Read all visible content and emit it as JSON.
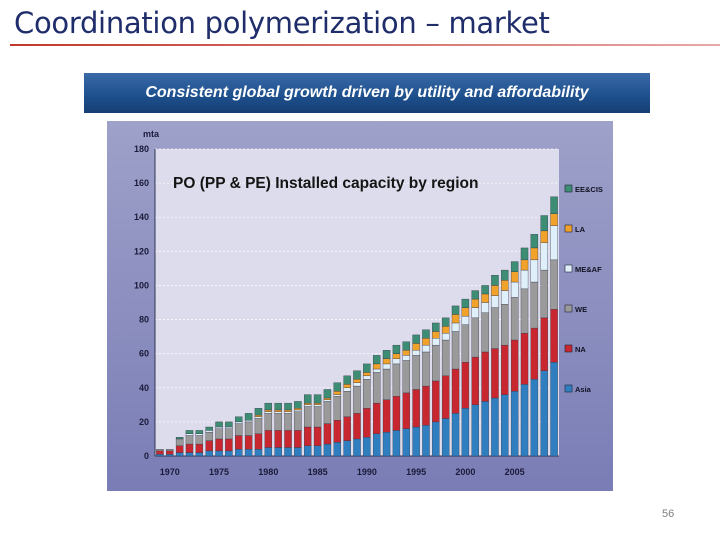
{
  "slide": {
    "title": "Coordination polymerization – market",
    "banner": "Consistent global growth driven by utility and affordability",
    "page_number": "56"
  },
  "colors": {
    "Asia": "#2f7fc0",
    "NA": "#c8272f",
    "WE": "#9a9a9a",
    "ME&AF": "#dff0fb",
    "LA": "#f0a22a",
    "EE&CIS": "#3d8c74"
  },
  "chart_data": {
    "type": "bar",
    "stacked": true,
    "title": "PO (PP & PE) Installed capacity by region",
    "ylabel": "mta",
    "ylim": [
      0,
      180
    ],
    "yticks": [
      "0",
      "20",
      "40",
      "60",
      "80",
      "100",
      "120",
      "140",
      "160",
      "180"
    ],
    "x": [
      1969,
      1970,
      1971,
      1972,
      1973,
      1974,
      1975,
      1976,
      1977,
      1978,
      1979,
      1980,
      1981,
      1982,
      1983,
      1984,
      1985,
      1986,
      1987,
      1988,
      1989,
      1990,
      1991,
      1992,
      1993,
      1994,
      1995,
      1996,
      1997,
      1998,
      1999,
      2000,
      2001,
      2002,
      2003,
      2004,
      2005,
      2006,
      2007,
      2008,
      2009
    ],
    "xticks": [
      "1970",
      "1975",
      "1980",
      "1985",
      "1990",
      "1995",
      "2000",
      "2005"
    ],
    "grid": true,
    "legend": "right",
    "series": [
      {
        "name": "Asia",
        "values": [
          1,
          1,
          2,
          2,
          2,
          3,
          3,
          3,
          4,
          4,
          4,
          5,
          5,
          5,
          5,
          6,
          6,
          7,
          8,
          9,
          10,
          11,
          13,
          14,
          15,
          16,
          17,
          18,
          20,
          22,
          25,
          28,
          30,
          32,
          34,
          36,
          38,
          42,
          45,
          50,
          55
        ]
      },
      {
        "name": "NA",
        "values": [
          2,
          2,
          4,
          5,
          5,
          6,
          7,
          7,
          8,
          8,
          9,
          10,
          10,
          10,
          10,
          11,
          11,
          12,
          13,
          14,
          15,
          17,
          18,
          19,
          20,
          21,
          22,
          23,
          24,
          25,
          26,
          27,
          28,
          29,
          29,
          29,
          30,
          30,
          30,
          31,
          31
        ]
      },
      {
        "name": "WE",
        "values": [
          1,
          1,
          4,
          5,
          5,
          5,
          6,
          6,
          7,
          8,
          9,
          10,
          10,
          10,
          11,
          12,
          12,
          13,
          14,
          15,
          16,
          17,
          18,
          18,
          19,
          19,
          20,
          20,
          21,
          21,
          22,
          22,
          23,
          23,
          24,
          24,
          25,
          26,
          27,
          28,
          29
        ]
      },
      {
        "name": "ME&AF",
        "values": [
          0,
          0,
          0,
          1,
          1,
          1,
          1,
          1,
          1,
          1,
          1,
          1,
          1,
          1,
          1,
          1,
          1,
          1,
          1,
          2,
          2,
          2,
          2,
          3,
          3,
          3,
          3,
          4,
          4,
          4,
          5,
          5,
          6,
          6,
          7,
          8,
          9,
          11,
          13,
          16,
          20
        ]
      },
      {
        "name": "LA",
        "values": [
          0,
          0,
          0,
          0,
          0,
          0,
          0,
          0,
          0,
          0,
          1,
          1,
          1,
          1,
          1,
          1,
          1,
          1,
          2,
          2,
          2,
          2,
          3,
          3,
          3,
          3,
          4,
          4,
          4,
          4,
          5,
          5,
          5,
          5,
          6,
          6,
          6,
          6,
          7,
          7,
          7
        ]
      },
      {
        "name": "EE&CIS",
        "values": [
          0,
          0,
          1,
          2,
          2,
          2,
          3,
          3,
          3,
          4,
          4,
          4,
          4,
          4,
          4,
          5,
          5,
          5,
          5,
          5,
          5,
          5,
          5,
          5,
          5,
          5,
          5,
          5,
          5,
          5,
          5,
          5,
          5,
          5,
          6,
          6,
          6,
          7,
          8,
          9,
          10
        ]
      }
    ]
  }
}
